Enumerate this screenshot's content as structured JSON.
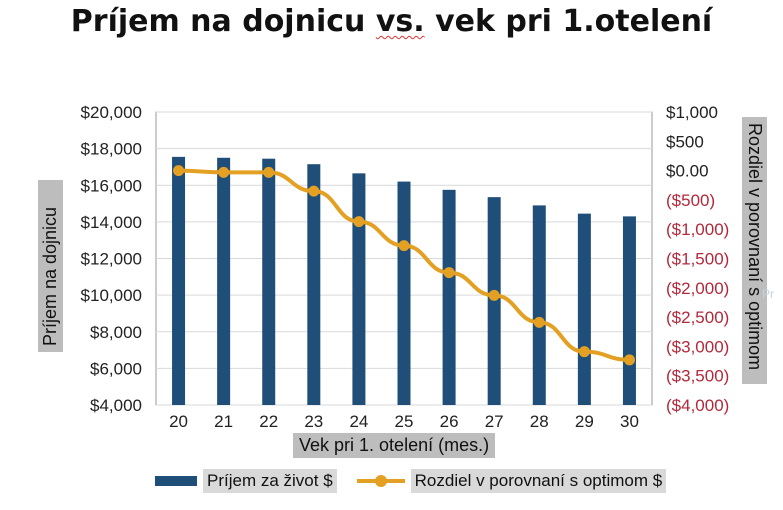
{
  "title_parts": {
    "a": "Príjem na dojnicu ",
    "b": "vs.",
    "c": " vek pri 1.otelení"
  },
  "colors": {
    "bars": "#1f4e79",
    "line": "#e3a023",
    "negative_ticks": "#b3283a",
    "grid": "#d9d9d9"
  },
  "stray_text": "Pr",
  "chart_data": {
    "type": "bar+line",
    "title": "Príjem na dojnicu vs. vek pri 1.otelení",
    "xlabel": "Vek pri 1. otelení (mes.)",
    "ylabel": "Príjem na dojnicu",
    "y2label": "Rozdiel v porovnaní s optimom",
    "categories": [
      "20",
      "21",
      "22",
      "23",
      "24",
      "25",
      "26",
      "27",
      "28",
      "29",
      "30"
    ],
    "ylim": [
      4000,
      20000
    ],
    "y2lim": [
      -4000,
      1000
    ],
    "yticks": [
      "$20,000",
      "$18,000",
      "$16,000",
      "$14,000",
      "$12,000",
      "$10,000",
      "$8,000",
      "$6,000",
      "$4,000"
    ],
    "y2ticks": [
      "$1,000",
      "$500",
      "$0.00",
      "($500)",
      "($1,000)",
      "($1,500)",
      "($2,000)",
      "($2,500)",
      "($3,000)",
      "($3,500)",
      "($4,000)"
    ],
    "grid": true,
    "legend_position": "bottom",
    "series": [
      {
        "name": "Príjem za život $",
        "type": "bar",
        "axis": "left",
        "values": [
          17550,
          17500,
          17450,
          17150,
          16650,
          16200,
          15750,
          15350,
          14900,
          14450,
          14300
        ]
      },
      {
        "name": "Rozdiel v porovnaní s optimom $",
        "type": "line",
        "axis": "right",
        "values": [
          0,
          -30,
          -30,
          -350,
          -870,
          -1280,
          -1740,
          -2130,
          -2590,
          -3090,
          -3230
        ]
      }
    ]
  }
}
